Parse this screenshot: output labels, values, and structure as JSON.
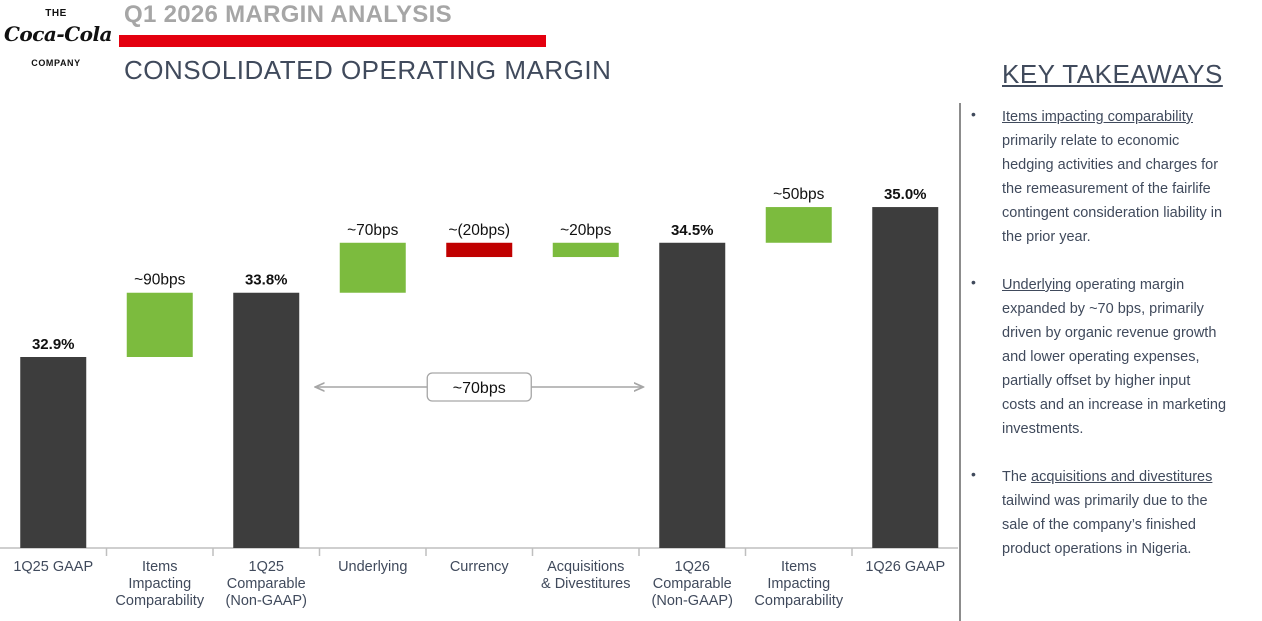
{
  "logo": {
    "the": "THE",
    "script": "Coca-Cola",
    "company": "COMPANY"
  },
  "header": {
    "eyebrow": "Q1 2026 MARGIN ANALYSIS",
    "title": "CONSOLIDATED OPERATING MARGIN"
  },
  "colors": {
    "base_bar": "#3d3d3d",
    "increase": "#7cbb3e",
    "decrease": "#c00000",
    "accent_red": "#e4000f",
    "heading_text": "#404a5c"
  },
  "chart_data": {
    "type": "bar",
    "subtype": "waterfall",
    "categories": [
      [
        "1Q25 GAAP"
      ],
      [
        "Items",
        "Impacting",
        "Comparability"
      ],
      [
        "1Q25",
        "Comparable",
        "(Non-GAAP)"
      ],
      [
        "Underlying"
      ],
      [
        "Currency"
      ],
      [
        "Acquisitions",
        "& Divestitures"
      ],
      [
        "1Q26",
        "Comparable",
        "(Non-GAAP)"
      ],
      [
        "Items",
        "Impacting",
        "Comparability"
      ],
      [
        "1Q26 GAAP"
      ]
    ],
    "steps": [
      {
        "kind": "total",
        "value": 32.9,
        "label": "32.9%"
      },
      {
        "kind": "delta",
        "value": 0.9,
        "label": "~90bps"
      },
      {
        "kind": "total",
        "value": 33.8,
        "label": "33.8%"
      },
      {
        "kind": "delta",
        "value": 0.7,
        "label": "~70bps"
      },
      {
        "kind": "delta",
        "value": -0.2,
        "label": "~(20bps)"
      },
      {
        "kind": "delta",
        "value": 0.2,
        "label": "~20bps"
      },
      {
        "kind": "total",
        "value": 34.5,
        "label": "34.5%"
      },
      {
        "kind": "delta",
        "value": 0.5,
        "label": "~50bps"
      },
      {
        "kind": "total",
        "value": 35.0,
        "label": "35.0%"
      }
    ],
    "bracket": {
      "from_index": 2,
      "to_index": 6,
      "label": "~70bps"
    },
    "legend": "none",
    "grid": false
  },
  "takeaways": {
    "title": "KEY TAKEAWAYS",
    "bullet": "•",
    "items": [
      {
        "lines": [
          [
            {
              "t": "Items impacting comparability",
              "u": true
            }
          ],
          [
            {
              "t": "primarily relate to economic"
            }
          ],
          [
            {
              "t": "hedging activities and charges for"
            }
          ],
          [
            {
              "t": "the remeasurement of the fairlife"
            }
          ],
          [
            {
              "t": "contingent consideration liability in"
            }
          ],
          [
            {
              "t": "the prior year."
            }
          ]
        ]
      },
      {
        "lines": [
          [
            {
              "t": "Underlying",
              "u": true
            },
            {
              "t": " operating margin"
            }
          ],
          [
            {
              "t": "expanded by ~70 bps, primarily"
            }
          ],
          [
            {
              "t": "driven by organic revenue growth"
            }
          ],
          [
            {
              "t": "and lower operating expenses,"
            }
          ],
          [
            {
              "t": "partially offset by higher input"
            }
          ],
          [
            {
              "t": "costs and an increase in marketing"
            }
          ],
          [
            {
              "t": "investments."
            }
          ]
        ]
      },
      {
        "lines": [
          [
            {
              "t": "The "
            },
            {
              "t": "acquisitions and divestitures",
              "u": true
            }
          ],
          [
            {
              "t": "tailwind was primarily due to the"
            }
          ],
          [
            {
              "t": "sale of the company’s finished"
            }
          ],
          [
            {
              "t": "product operations in Nigeria."
            }
          ]
        ]
      }
    ]
  }
}
